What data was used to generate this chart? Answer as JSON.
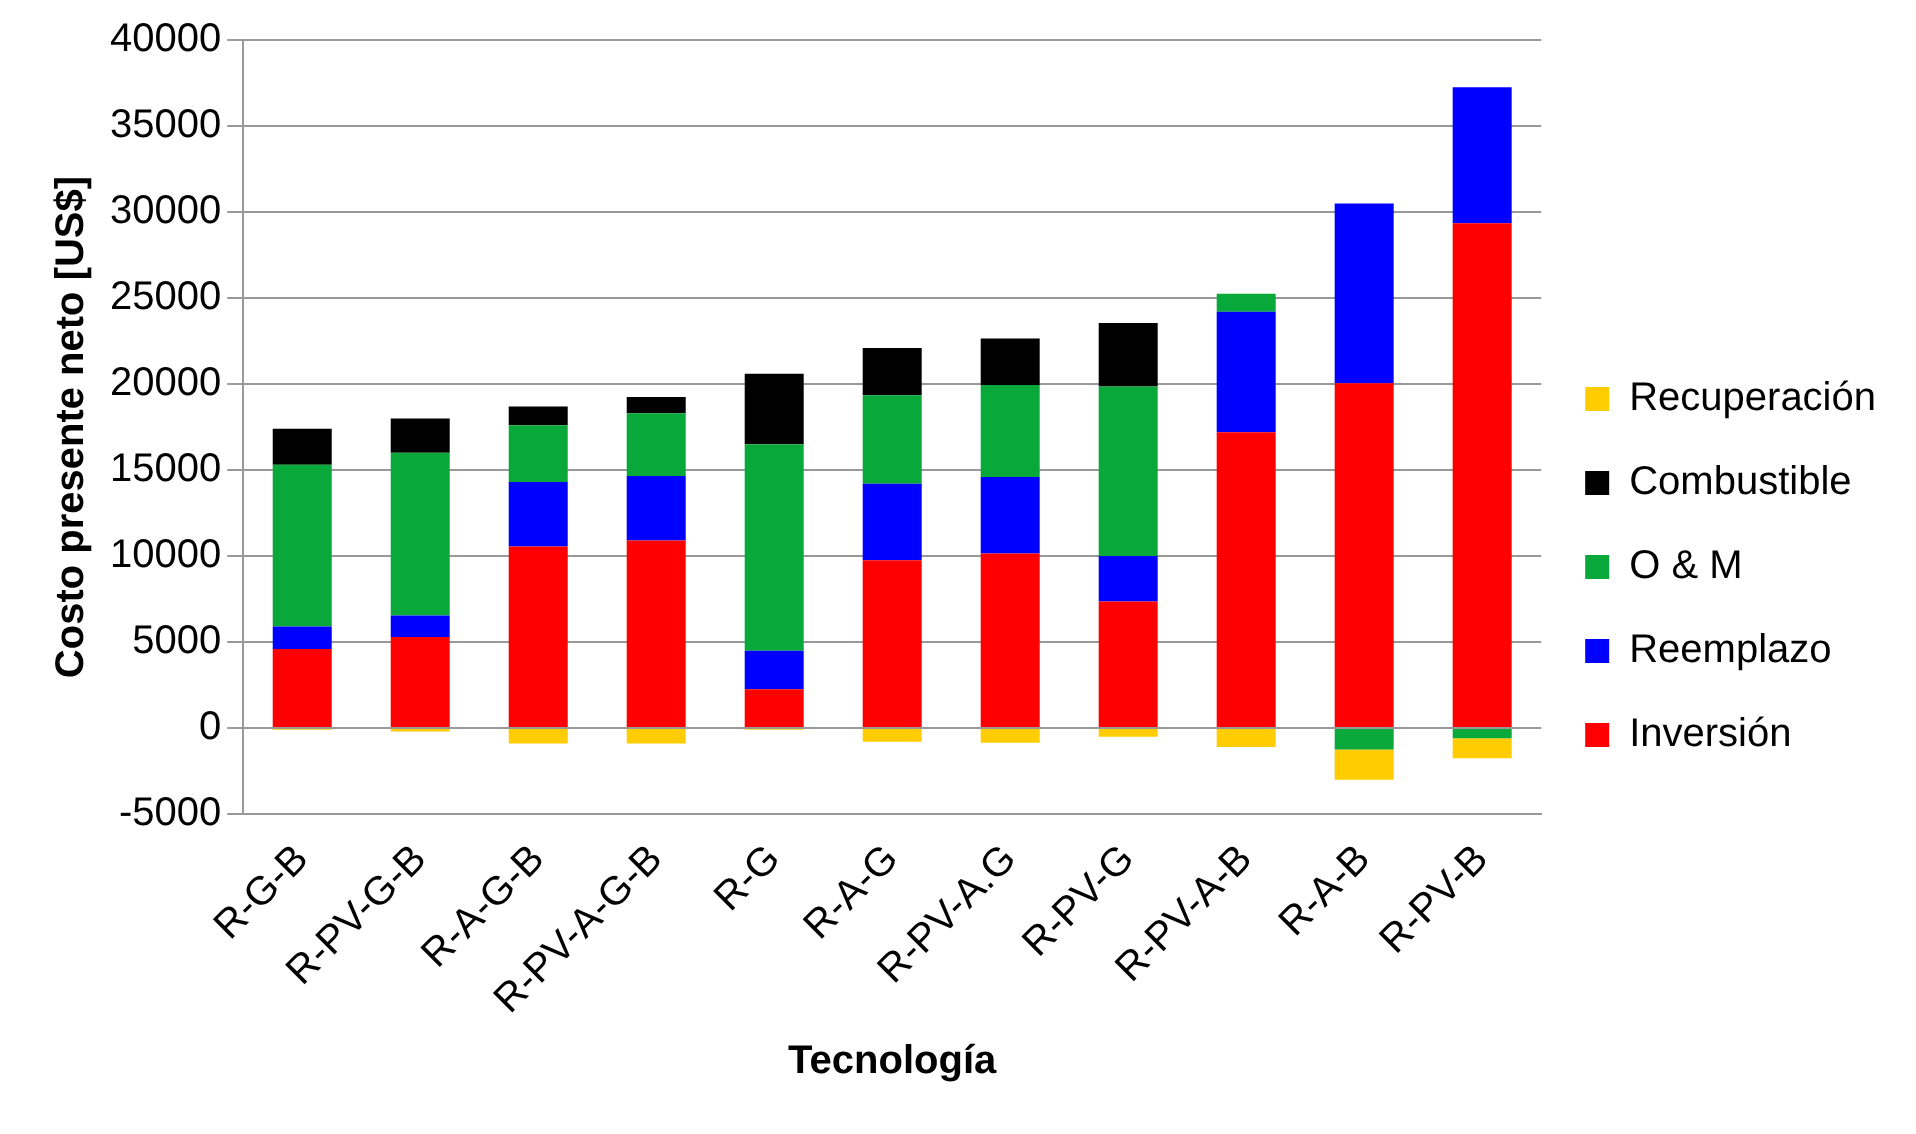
{
  "chart_data": {
    "type": "bar",
    "stacked": true,
    "xlabel": "Tecnología",
    "ylabel": "Costo presente neto [US$]",
    "categories": [
      "R-G-B",
      "R-PV-G-B",
      "R-A-G-B",
      "R-PV-A-G-B",
      "R-G",
      "R-A-G",
      "R-PV-A.G",
      "R-PV-G",
      "R-PV-A-B",
      "R-A-B",
      "R-PV-B"
    ],
    "series": [
      {
        "name": "Inversión",
        "color": "#ff0000",
        "values": [
          4600,
          5300,
          10550,
          10900,
          2250,
          9750,
          10150,
          7350,
          17200,
          20050,
          29350
        ]
      },
      {
        "name": "Reemplazo",
        "color": "#0000ff",
        "values": [
          1300,
          1250,
          3750,
          3750,
          2250,
          4450,
          4450,
          2650,
          7000,
          10450,
          7900
        ]
      },
      {
        "name": "O & M",
        "color": "#09a83a",
        "values": [
          9400,
          9450,
          3300,
          3650,
          12000,
          5150,
          5350,
          9850,
          1050,
          -1250,
          -600
        ]
      },
      {
        "name": "Combustible",
        "color": "#000000",
        "values": [
          2100,
          2000,
          1100,
          950,
          4100,
          2750,
          2700,
          3700,
          null,
          null,
          null
        ]
      },
      {
        "name": "Recuperación",
        "color": "#ffcc00",
        "values": [
          -100,
          -200,
          -900,
          -900,
          -100,
          -800,
          -850,
          -500,
          -1100,
          -1750,
          -1150
        ]
      }
    ],
    "ylim": [
      -5000,
      40000
    ],
    "yticks": [
      -5000,
      0,
      5000,
      10000,
      15000,
      20000,
      25000,
      30000,
      35000,
      40000
    ],
    "grid": "y",
    "legend": "right"
  }
}
